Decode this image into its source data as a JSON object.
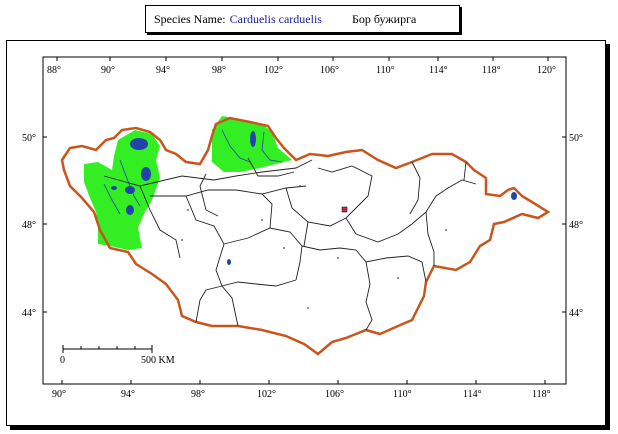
{
  "header": {
    "species_label": "Species Name:",
    "species_name": "Carduelis carduelis",
    "local_name": "Бор бужирга"
  },
  "map": {
    "top_lon_labels": [
      "88°",
      "90°",
      "94°",
      "98°",
      "102°",
      "106°",
      "110°",
      "114°",
      "118°",
      "120°"
    ],
    "bottom_lon_labels": [
      "90°",
      "94°",
      "98°",
      "102°",
      "106°",
      "110°",
      "114°",
      "118°"
    ],
    "left_lat_labels": [
      "50°",
      "48°",
      "44°"
    ],
    "right_lat_labels": [
      "50°",
      "48°",
      "44°"
    ],
    "scale": {
      "start": "0",
      "end": "500 KM"
    },
    "colors": {
      "border": "#c8561c",
      "range": "#33ee22",
      "water": "#2244aa",
      "internal": "#222222"
    }
  }
}
